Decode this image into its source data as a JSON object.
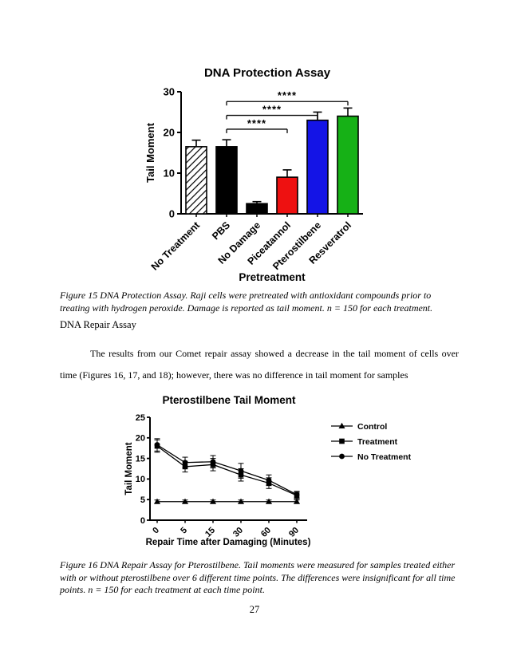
{
  "document": {
    "figure15_caption": "Figure 15 DNA Protection Assay. Raji cells were pretreated with antioxidant compounds prior to treating with hydrogen peroxide. Damage is reported as tail moment. n = 150 for each treatment.",
    "section_heading": "DNA Repair Assay",
    "paragraph": "The results from our Comet repair assay showed a decrease in the tail moment of cells over time (Figures 16, 17, and 18); however, there was no difference in tail moment for samples",
    "figure16_caption": "Figure 16 DNA Repair Assay for Pterostilbene. Tail moments were measured for samples treated either with or without pterostilbene over 6 different time points. The differences were insignificant for all time points. n = 150 for each treatment at each time point.",
    "page_number": "27"
  },
  "chart_data": [
    {
      "type": "bar",
      "title": "DNA Protection Assay",
      "xlabel": "Pretreatment",
      "ylabel": "Tail Moment",
      "ylim": [
        0,
        30
      ],
      "yticks": [
        0,
        10,
        20,
        30
      ],
      "categories": [
        "No Treatment",
        "PBS",
        "No Damage",
        "Piceatannol",
        "Pterostilbene",
        "Resveratrol"
      ],
      "values": [
        16.5,
        16.5,
        2.5,
        9,
        23,
        24
      ],
      "errors": [
        1.6,
        1.7,
        0.5,
        1.8,
        2,
        2
      ],
      "bar_styles": [
        "hatched",
        "solid",
        "solid",
        "solid",
        "solid",
        "solid"
      ],
      "bar_colors": [
        "#ffffff",
        "#000000",
        "#000000",
        "#ee1111",
        "#1414e6",
        "#16b116"
      ],
      "significance": [
        {
          "from": 1,
          "to": 3,
          "label": "****",
          "height": 20.8
        },
        {
          "from": 1,
          "to": 4,
          "label": "****",
          "height": 24.2
        },
        {
          "from": 1,
          "to": 5,
          "label": "****",
          "height": 27.6
        }
      ]
    },
    {
      "type": "line",
      "title": "Pterostilbene Tail Moment",
      "xlabel": "Repair Time after Damaging (Minutes)",
      "ylabel": "Tail Moment",
      "ylim": [
        0,
        25
      ],
      "yticks": [
        0,
        5,
        10,
        15,
        20,
        25
      ],
      "x_categories": [
        "0",
        "5",
        "15",
        "30",
        "60",
        "90"
      ],
      "legend_position": "right",
      "series": [
        {
          "name": "Control",
          "marker": "triangle",
          "values": [
            4.5,
            4.5,
            4.5,
            4.5,
            4.5,
            4.5
          ],
          "errors": [
            0.4,
            0.4,
            0.4,
            0.4,
            0.4,
            0.4
          ]
        },
        {
          "name": "Treatment",
          "marker": "square",
          "values": [
            18,
            13,
            13.5,
            11,
            9,
            6
          ],
          "errors": [
            1.5,
            1.3,
            1.5,
            1.5,
            1.3,
            0.8
          ]
        },
        {
          "name": "No Treatment",
          "marker": "circle",
          "values": [
            18.3,
            14,
            14.2,
            12,
            9.7,
            6.2
          ],
          "errors": [
            1.5,
            1.3,
            1.5,
            1.8,
            1.3,
            0.8
          ]
        }
      ]
    }
  ]
}
